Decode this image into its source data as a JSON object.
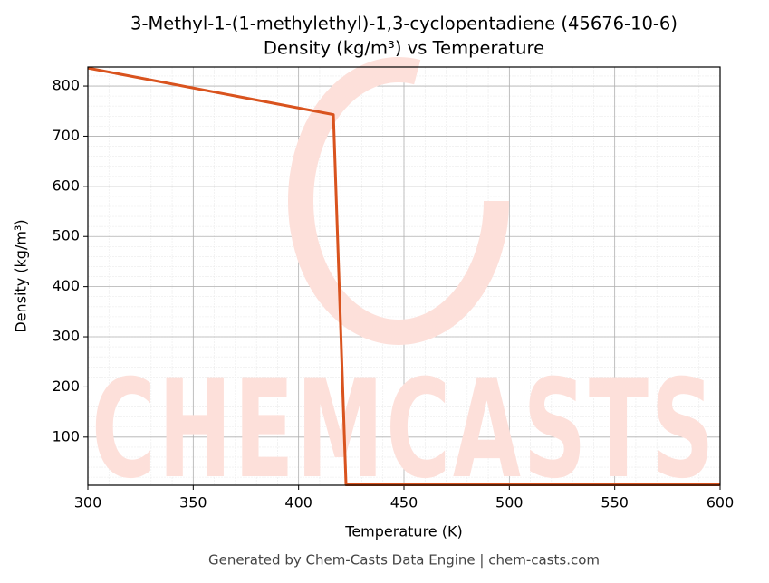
{
  "chart_data": {
    "type": "line",
    "title": "3-Methyl-1-(1-methylethyl)-1,3-cyclopentadiene (45676-10-6)",
    "subtitle": "Density (kg/m³) vs Temperature",
    "xlabel": "Temperature (K)",
    "ylabel": "Density (kg/m³)",
    "watermark": "CHEMCASTS",
    "footer": "Generated by Chem-Casts Data Engine | chem-casts.com",
    "x": [
      300,
      416.5,
      422.5,
      600
    ],
    "series": [
      {
        "name": "Density",
        "color": "#d9531e",
        "values": [
          836,
          743,
          5,
          5
        ]
      }
    ],
    "xlim": [
      300,
      600
    ],
    "xticks": [
      300,
      350,
      400,
      450,
      500,
      550,
      600
    ],
    "ylim": [
      4,
      838
    ],
    "yticks": [
      100,
      200,
      300,
      400,
      500,
      600,
      700,
      800
    ],
    "grid": true
  }
}
